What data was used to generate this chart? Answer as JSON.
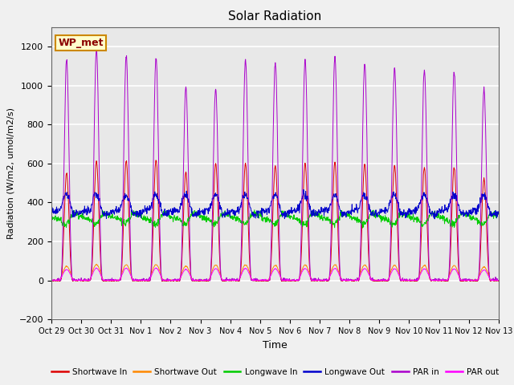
{
  "title": "Solar Radiation",
  "xlabel": "Time",
  "ylabel": "Radiation (W/m2, umol/m2/s)",
  "ylim": [
    -200,
    1300
  ],
  "yticks": [
    -200,
    0,
    200,
    400,
    600,
    800,
    1000,
    1200
  ],
  "bg_color": "#f0f0f0",
  "plot_bg_color": "#e8e8e8",
  "annotation_text": "WP_met",
  "series": [
    {
      "label": "Shortwave In",
      "color": "#dd0000"
    },
    {
      "label": "Shortwave Out",
      "color": "#ff8800"
    },
    {
      "label": "Longwave In",
      "color": "#00cc00"
    },
    {
      "label": "Longwave Out",
      "color": "#0000cc"
    },
    {
      "label": "PAR in",
      "color": "#aa00cc"
    },
    {
      "label": "PAR out",
      "color": "#ff00ff"
    }
  ],
  "x_tick_labels": [
    "Oct 29",
    "Oct 30",
    "Oct 31",
    "Nov 1",
    "Nov 2",
    "Nov 3",
    "Nov 4",
    "Nov 5",
    "Nov 6",
    "Nov 7",
    "Nov 8",
    "Nov 9",
    "Nov 10",
    "Nov 11",
    "Nov 12",
    "Nov 13"
  ],
  "num_days": 15,
  "dt_hours": 0.25
}
